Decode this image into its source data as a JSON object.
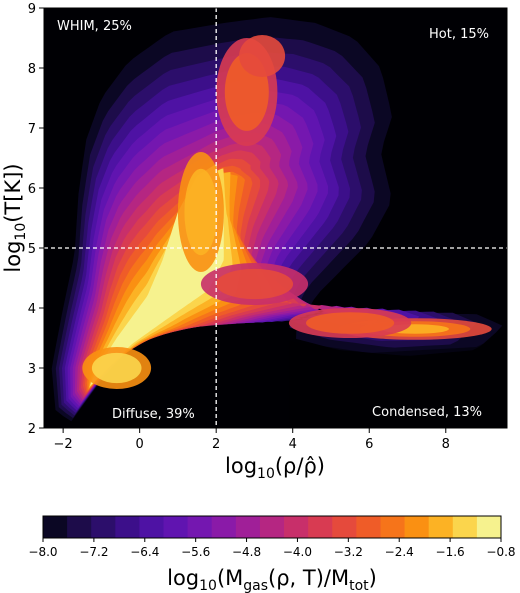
{
  "chart_data": {
    "type": "heatmap",
    "title": "",
    "xlabel": "log₁₀(ρ/ρ̂)",
    "ylabel": "log₁₀(T[K])",
    "xlim": [
      -2.5,
      9.6
    ],
    "ylim": [
      2,
      9
    ],
    "xticks": [
      -2,
      0,
      2,
      4,
      6,
      8
    ],
    "xtick_labels": [
      "−2",
      "0",
      "2",
      "4",
      "6",
      "8"
    ],
    "yticks": [
      2,
      3,
      4,
      5,
      6,
      7,
      8,
      9
    ],
    "ytick_labels": [
      "2",
      "3",
      "4",
      "5",
      "6",
      "7",
      "8",
      "9"
    ],
    "divider_lines": {
      "x": 2,
      "y": 5,
      "style": "dashed",
      "color": "#ffffff"
    },
    "background_color": "#000004",
    "regions": [
      {
        "label": "WHIM, 25%",
        "corner": "top-left"
      },
      {
        "label": "Hot, 15%",
        "corner": "top-right"
      },
      {
        "label": "Diffuse, 39%",
        "corner": "bottom-left"
      },
      {
        "label": "Condensed, 13%",
        "corner": "bottom-right"
      }
    ],
    "colorbar": {
      "label": "log₁₀(M_gas(ρ, T)/M_tot)",
      "label_main": "log",
      "label_sub": "10",
      "label_rest_1": "(M",
      "label_sub2": "gas",
      "label_rest_2": "(ρ, T)/M",
      "label_sub3": "tot",
      "label_end": ")",
      "min": -8.0,
      "max": -0.8,
      "levels": 18,
      "tick_values": [
        -8.0,
        -7.2,
        -6.4,
        -5.6,
        -4.8,
        -4.0,
        -3.2,
        -2.4,
        -1.6,
        -0.8
      ],
      "tick_labels": [
        "−8.0",
        "−7.2",
        "−6.4",
        "−5.6",
        "−4.8",
        "−4.0",
        "−3.2",
        "−2.4",
        "−1.6",
        "−0.8"
      ],
      "colormap": "inferno-like",
      "colors": [
        "#0b0724",
        "#1d0c4a",
        "#2c0e6b",
        "#3c0f8a",
        "#4e12a4",
        "#6014b0",
        "#7417b0",
        "#8a1aa8",
        "#a01f98",
        "#b52682",
        "#c82f6a",
        "#d83b52",
        "#e54a3c",
        "#ef5c28",
        "#f6741a",
        "#fa9012",
        "#fcb224",
        "#fbd54c",
        "#f6f28e"
      ]
    },
    "density_regions": [
      {
        "name": "diffuse-ridge",
        "description_in_data": true,
        "points": [
          [
            -2.2,
            2.4
          ],
          [
            -1.5,
            2.6
          ],
          [
            0,
            3.5
          ],
          [
            1.5,
            4.5
          ],
          [
            2.5,
            3.9
          ],
          [
            4,
            3.6
          ],
          [
            6,
            3.7
          ],
          [
            8,
            3.7
          ],
          [
            9.3,
            3.7
          ]
        ]
      }
    ]
  },
  "axis_ticks_x": [
    "−2",
    "0",
    "2",
    "4",
    "6",
    "8"
  ],
  "axis_ticks_y": [
    "2",
    "3",
    "4",
    "5",
    "6",
    "7",
    "8",
    "9"
  ]
}
